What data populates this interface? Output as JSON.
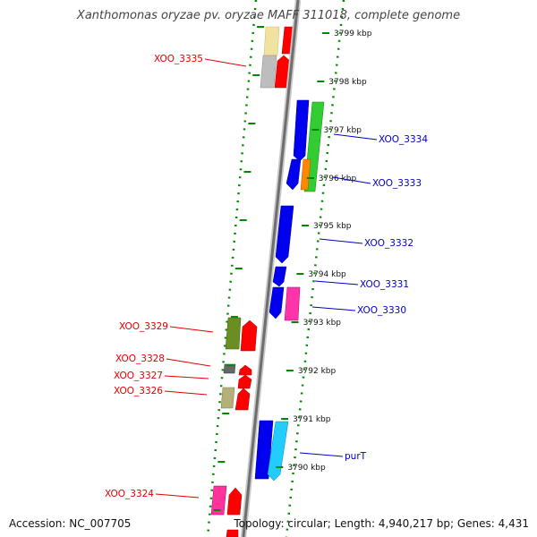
{
  "title": "Xanthomonas oryzae pv. oryzae MAFF 311018, complete genome",
  "footer": {
    "accession": "Accession: NC_007705",
    "summary": "Topology: circular; Length: 4,940,217 bp; Genes: 4,431"
  },
  "colors": {
    "forward_label": "#e00000",
    "reverse_label": "#0000c0",
    "axis": "#999999",
    "dotted_ring": "#008800"
  },
  "scale_ticks": [
    {
      "label": "3799 kbp"
    },
    {
      "label": "3798 kbp"
    },
    {
      "label": "3797 kbp"
    },
    {
      "label": "3796 kbp"
    },
    {
      "label": "3795 kbp"
    },
    {
      "label": "3794 kbp"
    },
    {
      "label": "3793 kbp"
    },
    {
      "label": "3792 kbp"
    },
    {
      "label": "3791 kbp"
    },
    {
      "label": "3790 kbp"
    }
  ],
  "gene_labels": [
    {
      "id": "XOO_3335",
      "strand": "forward"
    },
    {
      "id": "XOO_3334",
      "strand": "reverse"
    },
    {
      "id": "XOO_3333",
      "strand": "reverse"
    },
    {
      "id": "XOO_3332",
      "strand": "reverse"
    },
    {
      "id": "XOO_3331",
      "strand": "reverse"
    },
    {
      "id": "XOO_3330",
      "strand": "reverse"
    },
    {
      "id": "XOO_3329",
      "strand": "forward"
    },
    {
      "id": "XOO_3328",
      "strand": "forward"
    },
    {
      "id": "XOO_3327",
      "strand": "forward"
    },
    {
      "id": "XOO_3326",
      "strand": "forward"
    },
    {
      "id": "purT",
      "strand": "reverse"
    },
    {
      "id": "XOO_3324",
      "strand": "forward"
    }
  ]
}
